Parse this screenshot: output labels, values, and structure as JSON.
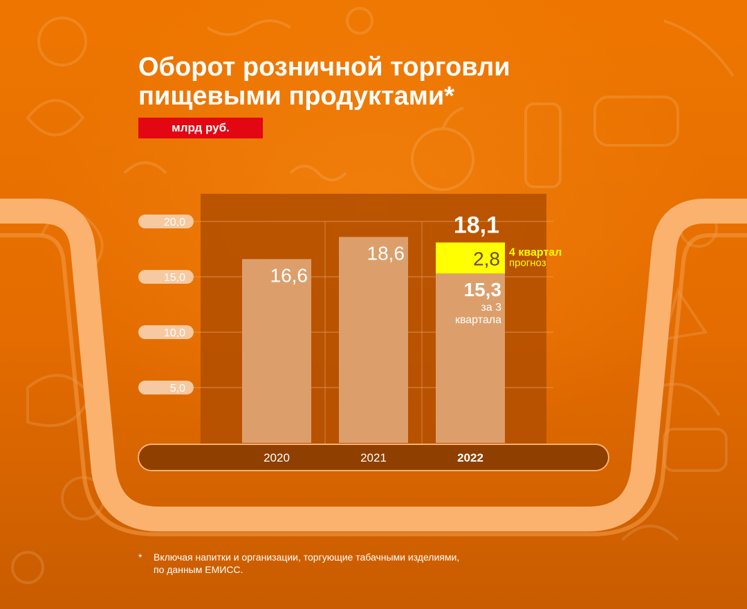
{
  "header": {
    "title_line1": "Оборот розничной торговли",
    "title_line2": "пищевыми продуктами*",
    "unit": "млрд руб."
  },
  "chart_data": {
    "type": "bar",
    "title": "Оборот розничной торговли пищевыми продуктами*",
    "ylabel": "млрд руб.",
    "ylim": [
      0,
      20
    ],
    "yticks": [
      "5,0",
      "10,0",
      "15,0",
      "20,0"
    ],
    "ytick_values": [
      5,
      10,
      15,
      20
    ],
    "categories": [
      "2020",
      "2021",
      "2022"
    ],
    "bars": [
      {
        "year": "2020",
        "value": 16.6,
        "label": "16,6"
      },
      {
        "year": "2021",
        "value": 18.6,
        "label": "18,6"
      },
      {
        "year": "2022",
        "value": 15.3,
        "label": "15,3",
        "sublabel_line1": "за 3",
        "sublabel_line2": "квартала",
        "forecast": {
          "value": 2.8,
          "label": "2,8",
          "note_line1": "4 квартал",
          "note_line2": "прогноз"
        },
        "total_label": "18,1"
      }
    ],
    "grid": true,
    "colors": {
      "bar": "#dc9f6c",
      "forecast": "#ffff00",
      "panel": "#b14d00",
      "base": "#8f3f00",
      "forecast_note": "#ffff00"
    }
  },
  "footnote": {
    "marker": "*",
    "line1": "Включая напитки и организации, торгующие табачными изделиями,",
    "line2": "по данным ЕМИСС."
  }
}
